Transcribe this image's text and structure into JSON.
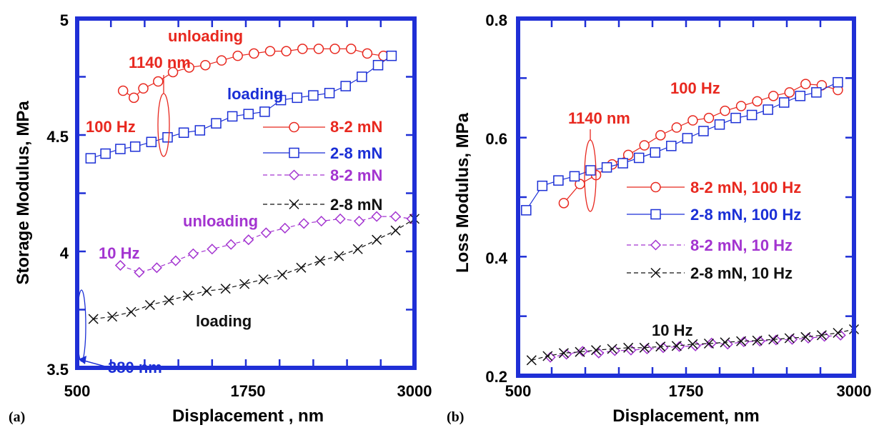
{
  "chart_data": [
    {
      "panel": "(a)",
      "type": "line",
      "xlabel": "Displacement , nm",
      "ylabel": "Storage Modulus, MPa",
      "xlim": [
        500,
        3000
      ],
      "ylim": [
        3.5,
        5
      ],
      "xticks": [
        "500",
        "1750",
        "3000"
      ],
      "yticks": [
        "3.5",
        "4",
        "4.5",
        "5"
      ],
      "series": [
        {
          "name": "8-2 mN",
          "marker": "circle",
          "color": "#e8281f",
          "dashed": false,
          "x": [
            840,
            920,
            990,
            1100,
            1210,
            1330,
            1450,
            1570,
            1690,
            1810,
            1930,
            2050,
            2170,
            2290,
            2410,
            2530,
            2650,
            2770
          ],
          "y": [
            4.69,
            4.66,
            4.7,
            4.73,
            4.77,
            4.79,
            4.8,
            4.82,
            4.84,
            4.85,
            4.86,
            4.86,
            4.87,
            4.87,
            4.87,
            4.87,
            4.85,
            4.84
          ]
        },
        {
          "name": "2-8 mN",
          "marker": "square",
          "color": "#1b2fd6",
          "dashed": false,
          "x": [
            600,
            710,
            820,
            930,
            1050,
            1170,
            1290,
            1410,
            1530,
            1650,
            1770,
            1890,
            2010,
            2130,
            2250,
            2370,
            2490,
            2610,
            2730,
            2830
          ],
          "y": [
            4.4,
            4.42,
            4.44,
            4.45,
            4.47,
            4.49,
            4.51,
            4.52,
            4.55,
            4.58,
            4.59,
            4.6,
            4.65,
            4.66,
            4.67,
            4.68,
            4.71,
            4.75,
            4.8,
            4.84
          ]
        },
        {
          "name": "8-2 mN",
          "marker": "diamond",
          "color": "#a334d0",
          "dashed": true,
          "x": [
            820,
            960,
            1090,
            1230,
            1360,
            1500,
            1640,
            1770,
            1900,
            2040,
            2180,
            2310,
            2450,
            2590,
            2720,
            2860,
            2980
          ],
          "y": [
            3.94,
            3.91,
            3.93,
            3.96,
            3.99,
            4.01,
            4.03,
            4.05,
            4.08,
            4.1,
            4.12,
            4.13,
            4.14,
            4.13,
            4.15,
            4.15,
            4.14
          ]
        },
        {
          "name": "2-8 mN",
          "marker": "x",
          "color": "#111111",
          "dashed": true,
          "x": [
            620,
            760,
            900,
            1040,
            1180,
            1320,
            1460,
            1600,
            1740,
            1880,
            2020,
            2160,
            2300,
            2440,
            2580,
            2720,
            2860,
            3000
          ],
          "y": [
            3.71,
            3.72,
            3.74,
            3.77,
            3.79,
            3.81,
            3.83,
            3.84,
            3.86,
            3.88,
            3.9,
            3.93,
            3.96,
            3.98,
            4.01,
            4.05,
            4.09,
            4.14
          ]
        }
      ],
      "annotations": [
        {
          "text": "unloading",
          "color": "#e8281f"
        },
        {
          "text": "1140 nm",
          "color": "#e8281f"
        },
        {
          "text": "loading",
          "color": "#1b2fd6"
        },
        {
          "text": "100 Hz",
          "color": "#e8281f"
        },
        {
          "text": "unloading",
          "color": "#a334d0"
        },
        {
          "text": "10 Hz",
          "color": "#a334d0"
        },
        {
          "text": "loading",
          "color": "#111111"
        },
        {
          "text": "380 nm",
          "color": "#1b2fd6"
        }
      ]
    },
    {
      "panel": "(b)",
      "type": "line",
      "xlabel": "Displacement, nm",
      "ylabel": "Loss Modulus, MPa",
      "xlim": [
        500,
        3000
      ],
      "ylim": [
        0.2,
        0.8
      ],
      "xticks": [
        "500",
        "1750",
        "3000"
      ],
      "yticks": [
        "0.2",
        "0.4",
        "0.6",
        "0.8"
      ],
      "series": [
        {
          "name": "8-2 mN, 100 Hz",
          "marker": "circle",
          "color": "#e8281f",
          "dashed": false,
          "x": [
            840,
            960,
            1080,
            1200,
            1320,
            1440,
            1560,
            1680,
            1800,
            1920,
            2040,
            2160,
            2280,
            2400,
            2520,
            2640,
            2760,
            2880
          ],
          "y": [
            0.49,
            0.522,
            0.537,
            0.555,
            0.571,
            0.587,
            0.604,
            0.617,
            0.629,
            0.633,
            0.645,
            0.653,
            0.661,
            0.67,
            0.676,
            0.69,
            0.688,
            0.68
          ]
        },
        {
          "name": "2-8 mN, 100 Hz",
          "marker": "square",
          "color": "#1b2fd6",
          "dashed": false,
          "x": [
            560,
            680,
            800,
            920,
            1040,
            1160,
            1280,
            1400,
            1520,
            1640,
            1760,
            1880,
            2000,
            2120,
            2240,
            2360,
            2480,
            2600,
            2720,
            2880
          ],
          "y": [
            0.478,
            0.519,
            0.528,
            0.535,
            0.545,
            0.55,
            0.557,
            0.566,
            0.575,
            0.586,
            0.599,
            0.611,
            0.622,
            0.633,
            0.638,
            0.647,
            0.659,
            0.67,
            0.676,
            0.693
          ]
        },
        {
          "name": "8-2 mN, 10 Hz",
          "marker": "diamond",
          "color": "#a334d0",
          "dashed": true,
          "x": [
            740,
            860,
            980,
            1100,
            1220,
            1340,
            1460,
            1580,
            1700,
            1820,
            1940,
            2060,
            2180,
            2300,
            2420,
            2540,
            2660,
            2780,
            2900
          ],
          "y": [
            0.231,
            0.236,
            0.241,
            0.238,
            0.242,
            0.243,
            0.245,
            0.247,
            0.249,
            0.25,
            0.255,
            0.253,
            0.257,
            0.258,
            0.26,
            0.261,
            0.263,
            0.266,
            0.268
          ]
        },
        {
          "name": "2-8 mN, 10 Hz",
          "marker": "x",
          "color": "#111111",
          "dashed": true,
          "x": [
            600,
            720,
            840,
            960,
            1080,
            1200,
            1320,
            1440,
            1560,
            1680,
            1800,
            1920,
            2040,
            2160,
            2280,
            2400,
            2520,
            2640,
            2760,
            2880,
            3000
          ],
          "y": [
            0.226,
            0.233,
            0.238,
            0.24,
            0.243,
            0.245,
            0.247,
            0.247,
            0.249,
            0.25,
            0.253,
            0.254,
            0.256,
            0.258,
            0.259,
            0.261,
            0.263,
            0.265,
            0.268,
            0.272,
            0.278
          ]
        }
      ],
      "annotations": [
        {
          "text": "100 Hz",
          "color": "#e8281f"
        },
        {
          "text": "1140 nm",
          "color": "#e8281f"
        },
        {
          "text": "10 Hz",
          "color": "#111111"
        }
      ]
    }
  ]
}
